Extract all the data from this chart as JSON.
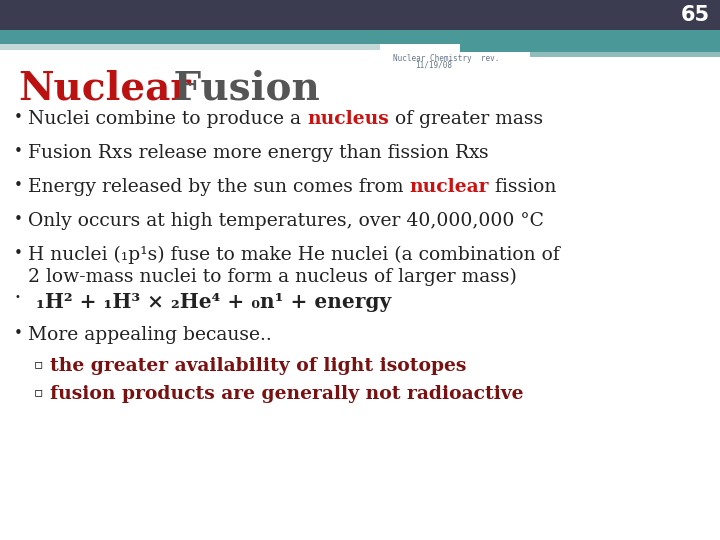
{
  "slide_number": "65",
  "background_color": "#ffffff",
  "header_dark": "#3c3c50",
  "header_teal": "#4a9898",
  "header_light": "#90bcbc",
  "header_pale": "#c5d8d8",
  "title_nuclear": "Nuclear",
  "title_fusion": " Fusion",
  "subtitle_line1": "Nuclear Chemistry  rev.",
  "subtitle_line2": "11/19/08",
  "title_red": "#bb1111",
  "title_gray": "#555555",
  "black": "#222222",
  "red": "#cc1111",
  "maroon": "#7a1010",
  "sub_bullets": [
    "the greater availability of light isotopes",
    "fusion products are generally not radioactive"
  ]
}
